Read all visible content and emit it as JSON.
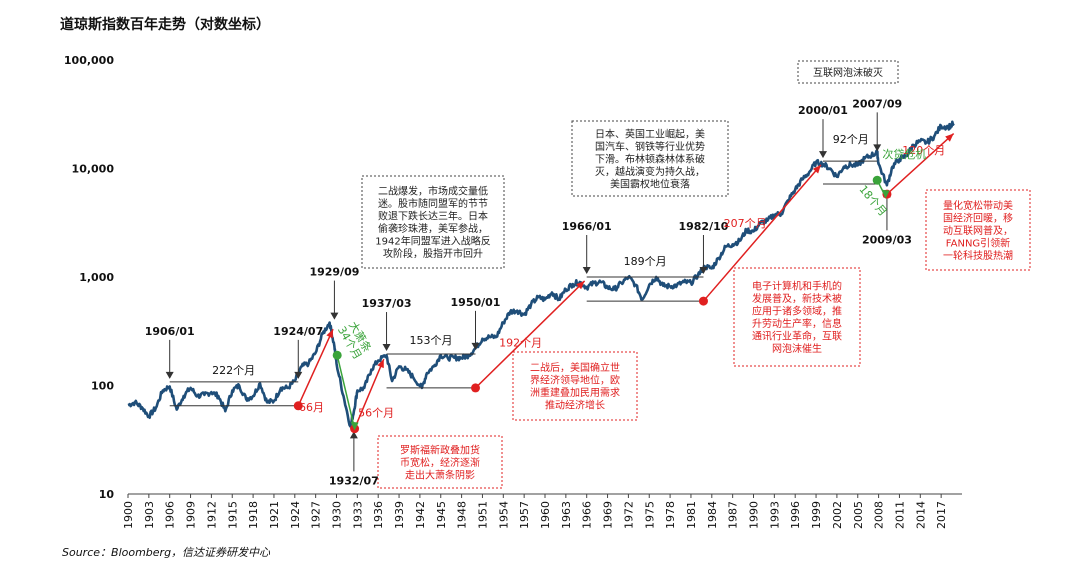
{
  "chart_data": {
    "type": "line",
    "title": "道琼斯指数百年走势（对数坐标）",
    "y_scale": "log",
    "ylim": [
      10,
      100000
    ],
    "y_ticks": [
      "10",
      "100",
      "1,000",
      "10,000",
      "100,000"
    ],
    "y_tick_values": [
      10,
      100,
      1000,
      10000,
      100000
    ],
    "xlim": [
      1900,
      2020
    ],
    "x_ticks": [
      "1900",
      "1903",
      "1906",
      "1909",
      "1912",
      "1915",
      "1918",
      "1921",
      "1924",
      "1927",
      "1930",
      "1933",
      "1936",
      "1939",
      "1942",
      "1945",
      "1948",
      "1951",
      "1954",
      "1957",
      "1960",
      "1963",
      "1966",
      "1969",
      "1972",
      "1975",
      "1978",
      "1981",
      "1984",
      "1987",
      "1990",
      "1993",
      "1996",
      "1999",
      "2002",
      "2005",
      "2008",
      "2011",
      "2014",
      "2017"
    ],
    "series": [
      {
        "color": "#1f4e79",
        "x": [
          1900,
          1901,
          1902,
          1903,
          1904,
          1905,
          1906,
          1907,
          1908,
          1909,
          1910,
          1911,
          1912,
          1913,
          1914,
          1915,
          1916,
          1917,
          1918,
          1919,
          1920,
          1921,
          1922,
          1923,
          1924,
          1925,
          1926,
          1927,
          1928,
          1929,
          1929.7,
          1930,
          1931,
          1932,
          1932.5,
          1933,
          1934,
          1935,
          1936,
          1937.2,
          1938,
          1939,
          1940,
          1941,
          1942.3,
          1943,
          1944,
          1945,
          1946,
          1947,
          1948,
          1949,
          1950,
          1951,
          1952,
          1953,
          1954,
          1955,
          1956,
          1957,
          1958,
          1959,
          1960,
          1961,
          1962,
          1963,
          1964,
          1965,
          1966,
          1967,
          1968,
          1969,
          1970,
          1971,
          1972,
          1973,
          1974,
          1975,
          1976,
          1977,
          1978,
          1979,
          1980,
          1981,
          1982,
          1983,
          1984,
          1985,
          1986,
          1987,
          1988,
          1989,
          1990,
          1991,
          1992,
          1993,
          1994,
          1995,
          1996,
          1997,
          1998,
          1999,
          2000,
          2001,
          2002,
          2003,
          2004,
          2005,
          2006,
          2007,
          2007.8,
          2008,
          2009.2,
          2010,
          2011,
          2012,
          2013,
          2014,
          2015,
          2016,
          2017,
          2018,
          2018.8
        ],
        "y": [
          66,
          70,
          63,
          52,
          62,
          90,
          98,
          60,
          80,
          95,
          80,
          82,
          87,
          80,
          58,
          90,
          100,
          75,
          80,
          105,
          70,
          72,
          95,
          95,
          110,
          150,
          160,
          200,
          300,
          380,
          230,
          160,
          80,
          42,
          58,
          90,
          95,
          140,
          170,
          190,
          110,
          150,
          140,
          120,
          95,
          130,
          150,
          190,
          180,
          180,
          180,
          190,
          220,
          270,
          280,
          280,
          380,
          480,
          490,
          450,
          560,
          650,
          620,
          720,
          620,
          770,
          860,
          900,
          800,
          880,
          900,
          800,
          770,
          880,
          1000,
          850,
          620,
          850,
          1000,
          830,
          820,
          840,
          900,
          880,
          1040,
          1250,
          1200,
          1500,
          1900,
          2000,
          2150,
          2700,
          2630,
          3150,
          3300,
          3750,
          3830,
          5100,
          6400,
          7900,
          9200,
          11400,
          11000,
          10000,
          8400,
          10400,
          10800,
          10700,
          12400,
          13300,
          14000,
          11000,
          7000,
          10400,
          12200,
          13100,
          16500,
          17800,
          17400,
          19800,
          24700,
          24000,
          26000
        ]
      }
    ],
    "milestones": [
      "1906/01",
      "1924/07",
      "1929/09",
      "1932/07",
      "1937/03",
      "1950/01",
      "1966/01",
      "1982/10",
      "2000/01",
      "2007/09",
      "2009/03"
    ],
    "durations": [
      "222个月",
      "153个月",
      "189个月",
      "92个月",
      "66月",
      "56个月",
      "192个月",
      "207个月",
      "120个月"
    ],
    "green_labels": [
      "大萧条\n34个月",
      "次贷危机",
      "18个月"
    ],
    "notes": {
      "ww2": "二战爆发，市场成交量低\n迷。股市随同盟军的节节\n败退下跌长达三年。日本\n偷袭珍珠港，美军参战，\n1942年同盟军进入战略反\n攻阶段，股指开市回升",
      "uk_us": "日本、英国工业崛起，美\n国汽车、钢铁等行业优势\n下滑。布林顿森林体系破\n灭，越战演变为持久战，\n美国霸权地位衰落",
      "dotcom": "互联网泡沫破灭",
      "roosevelt": "罗斯福新政叠加货\n币宽松，经济逐渐\n走出大萧条阴影",
      "postwar": "二战后，美国确立世\n界经济领导地位，欧\n洲重建叠加民用需求\n推动经济增长",
      "pc": "电子计算机和手机的\n发展普及，新技术被\n应用于诸多领域，推\n升劳动生产率，信息\n通讯行业革命，互联\n网泡沫催生",
      "qe": "量化宽松带动美\n国经济回暖，移\n动互联网普及，\nFANNG引领新\n一轮科技股热潮"
    },
    "source": "Source：Bloomberg，信达证券研发中心"
  }
}
